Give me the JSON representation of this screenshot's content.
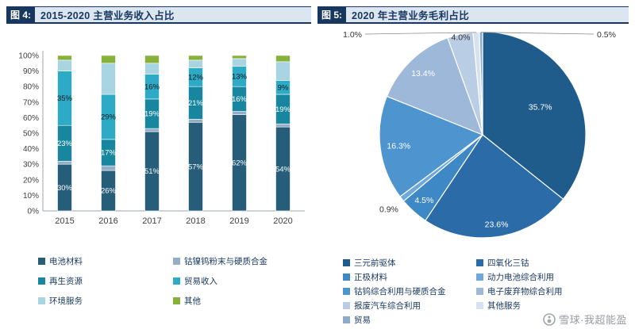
{
  "watermark": {
    "text": "雪球·我超能盈"
  },
  "chart_data": [
    {
      "type": "bar",
      "stacked": true,
      "panel_tag": "图 4:",
      "title": "2015-2020 主营业务收入占比",
      "categories": [
        "2015",
        "2016",
        "2017",
        "2018",
        "2019",
        "2020"
      ],
      "y_ticks": [
        "0%",
        "10%",
        "20%",
        "30%",
        "40%",
        "50%",
        "60%",
        "70%",
        "80%",
        "90%",
        "100%"
      ],
      "ylim": [
        0,
        100
      ],
      "grid": false,
      "legend_position": "bottom",
      "series": [
        {
          "name": "电池材料",
          "color": "#265E79",
          "label_color": "#ffffff",
          "values": [
            30,
            26,
            51,
            57,
            62,
            54
          ],
          "labels": [
            "30%",
            "26%",
            "51%",
            "57%",
            "62%",
            "54%"
          ]
        },
        {
          "name": "钴镍钨粉末与硬质合金",
          "color": "#93AEC5",
          "label_color": "#1a1a1a",
          "values": [
            2,
            3,
            2,
            2,
            2,
            2
          ],
          "labels": [
            null,
            null,
            null,
            null,
            null,
            null
          ]
        },
        {
          "name": "再生资源",
          "color": "#17869E",
          "label_color": "#ffffff",
          "values": [
            23,
            17,
            19,
            21,
            16,
            19
          ],
          "labels": [
            "23%",
            "17%",
            "19%",
            "21%",
            "16%",
            "19%"
          ]
        },
        {
          "name": "贸易收入",
          "color": "#2CAAC6",
          "label_color": "#1a1a1a",
          "values": [
            35,
            29,
            16,
            12,
            13,
            9
          ],
          "labels": [
            "35%",
            "29%",
            "16%",
            "12%",
            "13%",
            "9%"
          ]
        },
        {
          "name": "环境服务",
          "color": "#A9D4E1",
          "label_color": "#1a1a1a",
          "values": [
            7,
            20,
            7,
            5,
            5,
            12
          ],
          "labels": [
            null,
            null,
            null,
            null,
            null,
            null
          ]
        },
        {
          "name": "其他",
          "color": "#86B23C",
          "label_color": "#1a1a1a",
          "values": [
            3,
            5,
            5,
            3,
            2,
            4
          ],
          "labels": [
            null,
            null,
            null,
            null,
            null,
            null
          ]
        }
      ]
    },
    {
      "type": "pie",
      "panel_tag": "图 5:",
      "title": "2020 年主营业务毛利占比",
      "start_angle": 0,
      "direction": "clockwise",
      "legend_position": "bottom",
      "slices": [
        {
          "name": "三元前驱体",
          "value": 35.7,
          "label": "35.7%",
          "color": "#1F5C8B",
          "placement": "in",
          "label_r": 0.62,
          "label_color": "#ffffff"
        },
        {
          "name": "四氧化三钴",
          "value": 23.6,
          "label": "23.6%",
          "color": "#2A6BA8",
          "placement": "in",
          "label_r": 0.88,
          "label_color": "#ffffff"
        },
        {
          "name": "正极材料",
          "value": 4.5,
          "label": "4.5%",
          "color": "#3E88C5",
          "placement": "in",
          "label_r": 0.85,
          "label_color": "#ffffff"
        },
        {
          "name": "动力电池综合利用",
          "value": 0.9,
          "label": "0.9%",
          "color": "#6FA8DC",
          "placement": "out",
          "label_color": "#333333"
        },
        {
          "name": "钴钨综合利用与硬质合金",
          "value": 16.3,
          "label": "16.3%",
          "color": "#4E95D0",
          "placement": "in",
          "label_r": 0.82,
          "label_color": "#ffffff"
        },
        {
          "name": "电子废弃物综合利用",
          "value": 13.4,
          "label": "13.4%",
          "color": "#9DB8D9",
          "placement": "in",
          "label_r": 0.83,
          "label_color": "#ffffff"
        },
        {
          "name": "报废汽车综合利用",
          "value": 4.0,
          "label": "4.0%",
          "color": "#B9CDE5",
          "placement": "in",
          "label_r": 0.97,
          "label_color": "#333333"
        },
        {
          "name": "其他服务",
          "value": 1.0,
          "label": "1.0%",
          "color": "#D6E2F0",
          "placement": "callout-left",
          "label_color": "#333333"
        },
        {
          "name": "贸易",
          "value": 0.5,
          "label": "0.5%",
          "color": "#8FABCB",
          "placement": "callout-right",
          "label_color": "#333333"
        }
      ]
    }
  ]
}
